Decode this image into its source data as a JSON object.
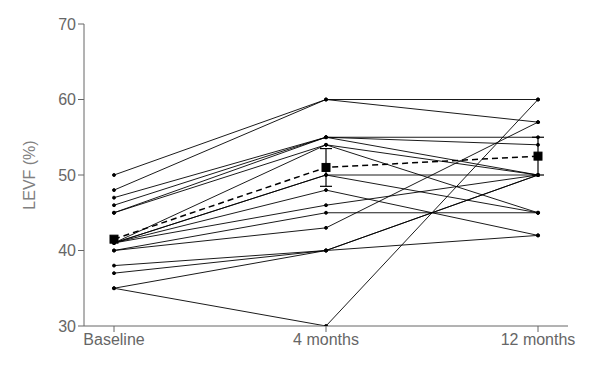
{
  "chart_data": {
    "type": "line",
    "categories": [
      "Baseline",
      "4 months",
      "12 months"
    ],
    "ylabel": "LEVF (%)",
    "ylim": [
      30,
      70
    ],
    "yticks": [
      30,
      40,
      50,
      60,
      70
    ],
    "grid": false,
    "series": [
      {
        "color": "#000000",
        "marker": "dot",
        "line_style": "solid",
        "values": [
          50,
          60,
          60
        ]
      },
      {
        "color": "#000000",
        "marker": "dot",
        "line_style": "solid",
        "values": [
          48,
          60,
          57
        ]
      },
      {
        "color": "#000000",
        "marker": "dot",
        "line_style": "solid",
        "values": [
          47,
          55,
          55
        ]
      },
      {
        "color": "#000000",
        "marker": "dot",
        "line_style": "solid",
        "values": [
          46,
          55,
          54
        ]
      },
      {
        "color": "#000000",
        "marker": "dot",
        "line_style": "solid",
        "values": [
          45,
          55,
          50
        ]
      },
      {
        "color": "#000000",
        "marker": "dot",
        "line_style": "solid",
        "values": [
          45,
          54,
          45
        ]
      },
      {
        "color": "#000000",
        "marker": "dot",
        "line_style": "solid",
        "values": [
          41,
          54,
          50
        ]
      },
      {
        "color": "#000000",
        "marker": "dot",
        "line_style": "solid",
        "values": [
          41,
          50,
          50
        ]
      },
      {
        "color": "#000000",
        "marker": "dot",
        "line_style": "solid",
        "values": [
          41,
          50,
          45
        ]
      },
      {
        "color": "#000000",
        "marker": "dot",
        "line_style": "solid",
        "values": [
          41,
          48,
          42
        ]
      },
      {
        "color": "#000000",
        "marker": "dot",
        "line_style": "solid",
        "values": [
          41,
          46,
          50
        ]
      },
      {
        "color": "#000000",
        "marker": "dot",
        "line_style": "solid",
        "values": [
          40,
          45,
          45
        ]
      },
      {
        "color": "#000000",
        "marker": "dot",
        "line_style": "solid",
        "values": [
          40,
          43,
          57
        ]
      },
      {
        "color": "#000000",
        "marker": "dot",
        "line_style": "solid",
        "values": [
          38,
          40,
          50
        ]
      },
      {
        "color": "#000000",
        "marker": "dot",
        "line_style": "solid",
        "values": [
          37,
          40,
          42
        ]
      },
      {
        "color": "#000000",
        "marker": "dot",
        "line_style": "solid",
        "values": [
          35,
          30,
          60
        ]
      },
      {
        "color": "#000000",
        "marker": "dot",
        "line_style": "solid",
        "values": [
          35,
          40,
          50
        ]
      },
      {
        "color": "#000000",
        "marker": "square",
        "line_style": "dashed",
        "values": [
          41.5,
          51,
          52.5
        ],
        "error": [
          null,
          2.5,
          2.5
        ]
      }
    ]
  }
}
